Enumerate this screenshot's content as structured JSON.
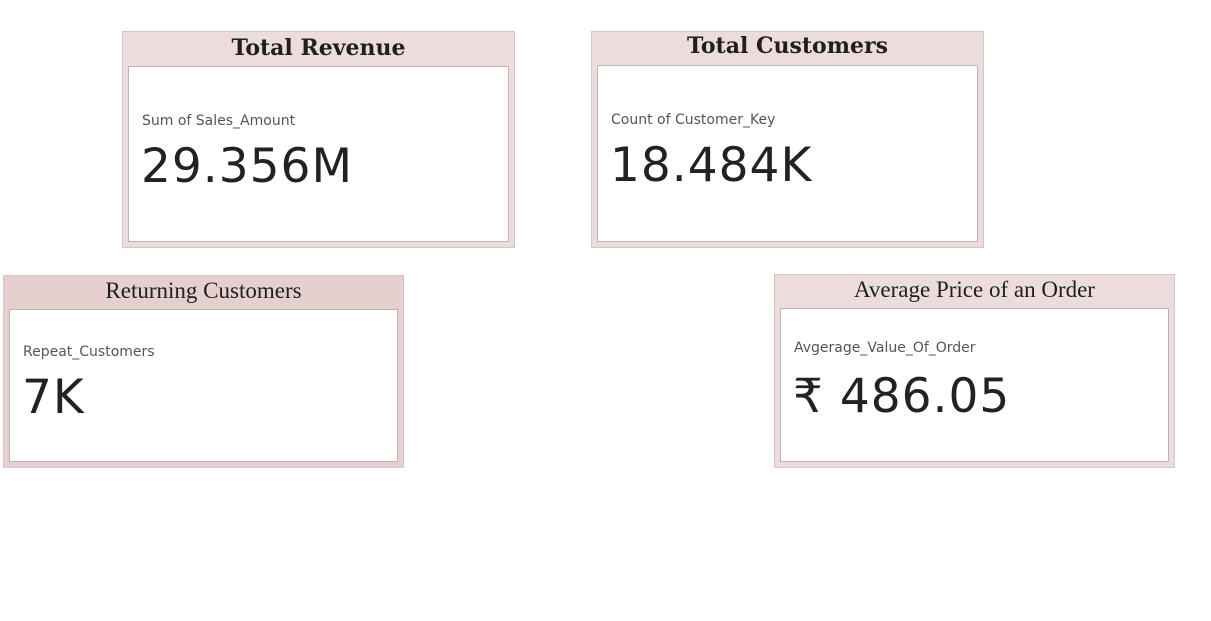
{
  "colors": {
    "card_background": "#eddcdc",
    "card_background_alt": "#e6cfcf"
  },
  "cards": [
    {
      "title": "Total Revenue",
      "label": "Sum of Sales_Amount",
      "value": "29.356M"
    },
    {
      "title": "Total Customers",
      "label": "Count of Customer_Key",
      "value": "18.484K"
    },
    {
      "title": "Returning Customers",
      "label": "Repeat_Customers",
      "value": "7K"
    },
    {
      "title": "Average Price of an Order",
      "label": "Avgerage_Value_Of_Order",
      "value": "₹ 486.05"
    }
  ]
}
